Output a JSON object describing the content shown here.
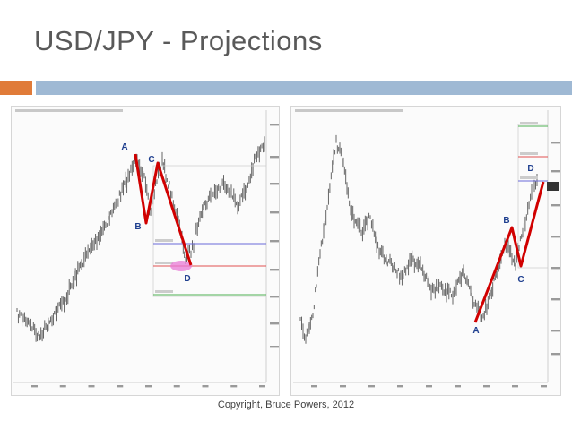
{
  "slide": {
    "title": "USD/JPY - Projections",
    "copyright": "Copyright, Bruce Powers, 2012"
  },
  "colors": {
    "title": "#595959",
    "accent_orange": "#e07b39",
    "accent_blue": "#9fb9d4",
    "pattern_line": "#d10000",
    "point_label": "#1f3f8f",
    "price": "#555555",
    "level_blue": "#6a6ad8",
    "level_red": "#e05050",
    "level_green": "#4caf50",
    "level_gray": "#bbbbbb",
    "highlight": "#e879d6"
  },
  "chart_data": [
    {
      "type": "line",
      "pattern_points": [
        "A",
        "B",
        "C",
        "D"
      ],
      "projection_levels": [
        "blue",
        "red",
        "green"
      ],
      "highlight_near": "D"
    },
    {
      "type": "line",
      "pattern_points": [
        "A",
        "B",
        "C",
        "D"
      ],
      "projection_levels": [
        "green",
        "red",
        "blue"
      ],
      "highlight_near": ""
    }
  ]
}
